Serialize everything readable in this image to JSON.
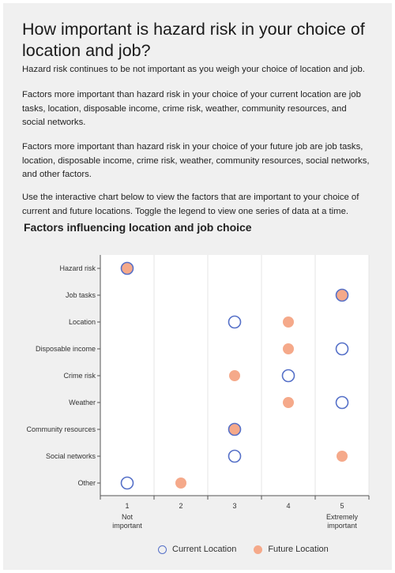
{
  "title": "How important is hazard risk in your choice of location and job?",
  "paragraphs": [
    "Hazard risk continues to be not important as you weigh your choice of location and job.",
    "Factors more important than hazard risk in your choice of your current location are job tasks, location, disposable income, crime risk, weather, community resources, and social networks.",
    "Factors more important than hazard risk in your choice of your future job are job tasks, location, disposable income, crime risk, weather, community resources, social networks, and other factors.",
    "Use the interactive chart below to view the factors that are important to your choice of current and future locations. Toggle the legend to view one series of data at a time."
  ],
  "colors": {
    "current": "#5570c8",
    "future": "#f5a98a",
    "grid": "#e4e4e4",
    "axis": "#555555"
  },
  "chart_data": {
    "type": "scatter",
    "title": "Factors influencing location and job choice",
    "categories": [
      "Hazard risk",
      "Job tasks",
      "Location",
      "Disposable income",
      "Crime risk",
      "Weather",
      "Community resources",
      "Social networks",
      "Other"
    ],
    "x_ticks": [
      1,
      2,
      3,
      4,
      5
    ],
    "x_tick_sublabels": {
      "1": "Not important",
      "5": "Extremely important"
    },
    "xlim": [
      0.5,
      5.5
    ],
    "grid": "vertical",
    "legend_position": "bottom",
    "series": [
      {
        "name": "Current Location",
        "marker": "hollow-circle",
        "values": [
          1,
          5,
          3,
          5,
          4,
          5,
          3,
          3,
          1
        ]
      },
      {
        "name": "Future Location",
        "marker": "filled-circle",
        "values": [
          1,
          5,
          4,
          4,
          3,
          4,
          3,
          5,
          2
        ]
      }
    ]
  }
}
